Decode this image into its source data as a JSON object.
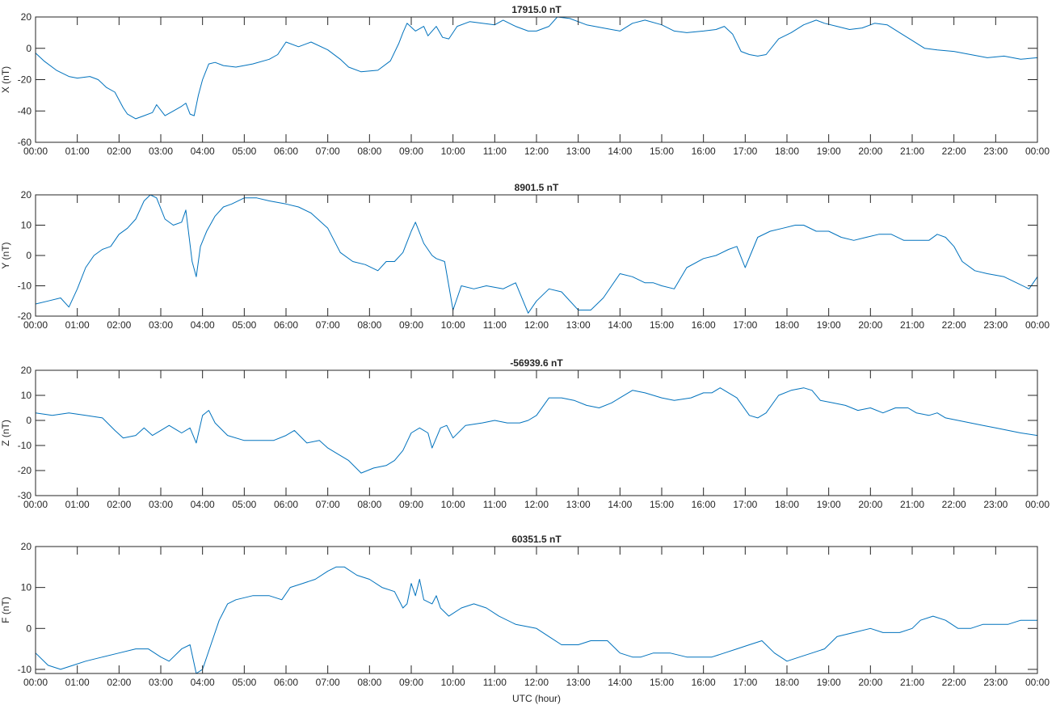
{
  "chart_data": [
    {
      "type": "line",
      "title": "17915.0 nT",
      "xlabel": "",
      "ylabel": "X (nT)",
      "ylim": [
        -60,
        20
      ],
      "yticks": [
        -60,
        -40,
        -20,
        0,
        20
      ],
      "xlim": [
        0,
        24
      ],
      "xtick_labels": [
        "00:00",
        "01:00",
        "02:00",
        "03:00",
        "04:00",
        "05:00",
        "06:00",
        "07:00",
        "08:00",
        "09:00",
        "10:00",
        "11:00",
        "12:00",
        "13:00",
        "14:00",
        "15:00",
        "16:00",
        "17:00",
        "18:00",
        "19:00",
        "20:00",
        "21:00",
        "22:00",
        "23:00",
        "00:00"
      ],
      "grid": false,
      "series": [
        {
          "color": "#0072BD",
          "x": [
            0,
            0.2,
            0.5,
            0.8,
            1,
            1.3,
            1.5,
            1.7,
            1.9,
            2.1,
            2.2,
            2.4,
            2.5,
            2.6,
            2.8,
            2.9,
            3.1,
            3.3,
            3.5,
            3.6,
            3.7,
            3.8,
            3.9,
            4,
            4.15,
            4.3,
            4.5,
            4.8,
            5.2,
            5.6,
            5.8,
            6,
            6.3,
            6.6,
            7,
            7.3,
            7.5,
            7.8,
            8.2,
            8.5,
            8.7,
            8.8,
            8.9,
            9.1,
            9.3,
            9.4,
            9.6,
            9.75,
            9.9,
            10.1,
            10.4,
            10.7,
            11,
            11.2,
            11.5,
            11.8,
            12,
            12.3,
            12.5,
            12.8,
            13.2,
            13.6,
            14,
            14.3,
            14.6,
            15,
            15.3,
            15.6,
            16,
            16.3,
            16.5,
            16.7,
            16.9,
            17.1,
            17.3,
            17.5,
            17.8,
            18.1,
            18.4,
            18.7,
            18.9,
            19.2,
            19.5,
            19.8,
            20.1,
            20.4,
            20.7,
            21,
            21.3,
            21.6,
            22,
            22.4,
            22.8,
            23.2,
            23.6,
            24
          ],
          "values": [
            -3,
            -8,
            -14,
            -18,
            -19,
            -18,
            -20,
            -25,
            -28,
            -38,
            -42,
            -45,
            -44,
            -43,
            -41,
            -36,
            -43,
            -40,
            -37,
            -35,
            -42,
            -43,
            -30,
            -20,
            -10,
            -9,
            -11,
            -12,
            -10,
            -7,
            -4,
            4,
            1,
            4,
            -1,
            -7,
            -12,
            -15,
            -14,
            -8,
            3,
            10,
            16,
            11,
            14,
            8,
            14,
            7,
            6,
            14,
            17,
            16,
            15,
            18,
            14,
            11,
            11,
            14,
            21,
            19,
            15,
            13,
            11,
            16,
            18,
            15,
            11,
            10,
            11,
            12,
            14,
            9,
            -2,
            -4,
            -5,
            -4,
            6,
            10,
            15,
            18,
            16,
            14,
            12,
            13,
            16,
            15,
            10,
            5,
            0,
            -1,
            -2,
            -4,
            -6,
            -5,
            -7,
            -6
          ]
        }
      ]
    },
    {
      "type": "line",
      "title": "8901.5 nT",
      "xlabel": "",
      "ylabel": "Y (nT)",
      "ylim": [
        -20,
        20
      ],
      "yticks": [
        -20,
        -10,
        0,
        10,
        20
      ],
      "xlim": [
        0,
        24
      ],
      "xtick_labels": [
        "00:00",
        "01:00",
        "02:00",
        "03:00",
        "04:00",
        "05:00",
        "06:00",
        "07:00",
        "08:00",
        "09:00",
        "10:00",
        "11:00",
        "12:00",
        "13:00",
        "14:00",
        "15:00",
        "16:00",
        "17:00",
        "18:00",
        "19:00",
        "20:00",
        "21:00",
        "22:00",
        "23:00",
        "00:00"
      ],
      "grid": false,
      "series": [
        {
          "color": "#0072BD",
          "x": [
            0,
            0.3,
            0.6,
            0.8,
            1,
            1.2,
            1.4,
            1.6,
            1.8,
            2,
            2.2,
            2.4,
            2.6,
            2.75,
            2.9,
            3.1,
            3.3,
            3.5,
            3.6,
            3.75,
            3.85,
            3.95,
            4.1,
            4.3,
            4.5,
            4.7,
            5,
            5.3,
            5.6,
            6,
            6.3,
            6.6,
            7,
            7.3,
            7.6,
            7.9,
            8.2,
            8.4,
            8.6,
            8.8,
            9,
            9.1,
            9.3,
            9.5,
            9.6,
            9.8,
            10,
            10.2,
            10.5,
            10.8,
            11.2,
            11.5,
            11.8,
            12,
            12.3,
            12.6,
            13,
            13.3,
            13.6,
            14,
            14.3,
            14.6,
            14.8,
            15,
            15.3,
            15.6,
            16,
            16.3,
            16.6,
            16.8,
            17,
            17.3,
            17.6,
            17.9,
            18.2,
            18.4,
            18.7,
            19,
            19.3,
            19.6,
            19.9,
            20.2,
            20.5,
            20.8,
            21.1,
            21.4,
            21.6,
            21.8,
            22,
            22.2,
            22.5,
            22.8,
            23.2,
            23.5,
            23.8,
            24
          ],
          "values": [
            -16,
            -15,
            -14,
            -17,
            -11,
            -4,
            0,
            2,
            3,
            7,
            9,
            12,
            18,
            20,
            19,
            12,
            10,
            11,
            15,
            -2,
            -7,
            3,
            8,
            13,
            16,
            17,
            19,
            19,
            18,
            17,
            16,
            14,
            9,
            1,
            -2,
            -3,
            -5,
            -2,
            -2,
            1,
            8,
            11,
            4,
            0,
            -1,
            -2,
            -18,
            -10,
            -11,
            -10,
            -11,
            -9,
            -19,
            -15,
            -11,
            -12,
            -18,
            -18,
            -14,
            -6,
            -7,
            -9,
            -9,
            -10,
            -11,
            -4,
            -1,
            0,
            2,
            3,
            -4,
            6,
            8,
            9,
            10,
            10,
            8,
            8,
            6,
            5,
            6,
            7,
            7,
            5,
            5,
            5,
            7,
            6,
            3,
            -2,
            -5,
            -6,
            -7,
            -9,
            -11,
            -7
          ]
        }
      ]
    },
    {
      "type": "line",
      "title": "-56939.6 nT",
      "xlabel": "",
      "ylabel": "Z (nT)",
      "ylim": [
        -30,
        20
      ],
      "yticks": [
        -30,
        -20,
        -10,
        0,
        10,
        20
      ],
      "xlim": [
        0,
        24
      ],
      "xtick_labels": [
        "00:00",
        "01:00",
        "02:00",
        "03:00",
        "04:00",
        "05:00",
        "06:00",
        "07:00",
        "08:00",
        "09:00",
        "10:00",
        "11:00",
        "12:00",
        "13:00",
        "14:00",
        "15:00",
        "16:00",
        "17:00",
        "18:00",
        "19:00",
        "20:00",
        "21:00",
        "22:00",
        "23:00",
        "00:00"
      ],
      "grid": false,
      "series": [
        {
          "color": "#0072BD",
          "x": [
            0,
            0.4,
            0.8,
            1.2,
            1.6,
            1.9,
            2.1,
            2.4,
            2.6,
            2.8,
            3,
            3.2,
            3.4,
            3.5,
            3.7,
            3.85,
            4,
            4.15,
            4.3,
            4.6,
            5,
            5.4,
            5.7,
            6,
            6.2,
            6.5,
            6.8,
            7,
            7.2,
            7.5,
            7.8,
            8.1,
            8.4,
            8.6,
            8.8,
            9,
            9.2,
            9.4,
            9.5,
            9.7,
            9.85,
            10,
            10.3,
            10.7,
            11,
            11.3,
            11.6,
            11.8,
            12,
            12.3,
            12.6,
            12.9,
            13.2,
            13.5,
            13.8,
            14,
            14.3,
            14.6,
            15,
            15.3,
            15.7,
            16,
            16.2,
            16.4,
            16.6,
            16.8,
            17.1,
            17.3,
            17.5,
            17.8,
            18.1,
            18.4,
            18.6,
            18.8,
            19.1,
            19.4,
            19.7,
            20,
            20.3,
            20.6,
            20.9,
            21.1,
            21.4,
            21.6,
            21.8,
            22.1,
            22.4,
            22.7,
            23,
            23.3,
            23.6,
            24
          ],
          "values": [
            3,
            2,
            3,
            2,
            1,
            -4,
            -7,
            -6,
            -3,
            -6,
            -4,
            -2,
            -4,
            -5,
            -3,
            -9,
            2,
            4,
            -1,
            -6,
            -8,
            -8,
            -8,
            -6,
            -4,
            -9,
            -8,
            -11,
            -13,
            -16,
            -21,
            -19,
            -18,
            -16,
            -12,
            -5,
            -3,
            -5,
            -11,
            -3,
            -2,
            -7,
            -2,
            -1,
            0,
            -1,
            -1,
            0,
            2,
            9,
            9,
            8,
            6,
            5,
            7,
            9,
            12,
            11,
            9,
            8,
            9,
            11,
            11,
            13,
            11,
            9,
            2,
            1,
            3,
            10,
            12,
            13,
            12,
            8,
            7,
            6,
            4,
            5,
            3,
            5,
            5,
            3,
            2,
            3,
            1,
            0,
            -1,
            -2,
            -3,
            -4,
            -5,
            -6
          ]
        }
      ]
    },
    {
      "type": "line",
      "title": "60351.5 nT",
      "xlabel": "UTC (hour)",
      "ylabel": "F (nT)",
      "ylim": [
        -11,
        20
      ],
      "yticks": [
        -10,
        0,
        10,
        20
      ],
      "xlim": [
        0,
        24
      ],
      "xtick_labels": [
        "00:00",
        "01:00",
        "02:00",
        "03:00",
        "04:00",
        "05:00",
        "06:00",
        "07:00",
        "08:00",
        "09:00",
        "10:00",
        "11:00",
        "12:00",
        "13:00",
        "14:00",
        "15:00",
        "16:00",
        "17:00",
        "18:00",
        "19:00",
        "20:00",
        "21:00",
        "22:00",
        "23:00",
        "00:00"
      ],
      "grid": false,
      "series": [
        {
          "color": "#0072BD",
          "x": [
            0,
            0.3,
            0.6,
            0.9,
            1.2,
            1.6,
            2,
            2.4,
            2.7,
            3,
            3.2,
            3.5,
            3.7,
            3.85,
            4,
            4.2,
            4.4,
            4.6,
            4.8,
            5.2,
            5.6,
            5.9,
            6.1,
            6.4,
            6.7,
            7,
            7.2,
            7.4,
            7.7,
            8,
            8.3,
            8.6,
            8.8,
            8.9,
            9,
            9.1,
            9.2,
            9.3,
            9.5,
            9.6,
            9.7,
            9.9,
            10.2,
            10.5,
            10.8,
            11.1,
            11.5,
            12,
            12.3,
            12.6,
            13,
            13.3,
            13.7,
            14,
            14.3,
            14.5,
            14.8,
            15.2,
            15.6,
            16,
            16.2,
            16.5,
            16.8,
            17.1,
            17.4,
            17.7,
            18,
            18.3,
            18.6,
            18.9,
            19.2,
            19.6,
            20,
            20.3,
            20.7,
            21,
            21.2,
            21.5,
            21.8,
            22.1,
            22.4,
            22.7,
            23,
            23.3,
            23.6,
            24
          ],
          "values": [
            -6,
            -9,
            -10,
            -9,
            -8,
            -7,
            -6,
            -5,
            -5,
            -7,
            -8,
            -5,
            -4,
            -11,
            -10,
            -4,
            2,
            6,
            7,
            8,
            8,
            7,
            10,
            11,
            12,
            14,
            15,
            15,
            13,
            12,
            10,
            9,
            5,
            6,
            11,
            8,
            12,
            7,
            6,
            8,
            5,
            3,
            5,
            6,
            5,
            3,
            1,
            0,
            -2,
            -4,
            -4,
            -3,
            -3,
            -6,
            -7,
            -7,
            -6,
            -6,
            -7,
            -7,
            -7,
            -6,
            -5,
            -4,
            -3,
            -6,
            -8,
            -7,
            -6,
            -5,
            -2,
            -1,
            0,
            -1,
            -1,
            0,
            2,
            3,
            2,
            0,
            0,
            1,
            1,
            1,
            2,
            2
          ]
        }
      ]
    }
  ]
}
